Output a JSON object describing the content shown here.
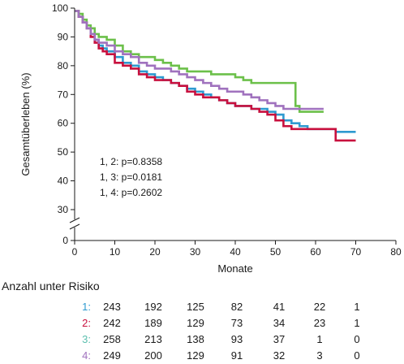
{
  "chart_data": {
    "type": "line",
    "step": true,
    "xlabel": "Monate",
    "ylabel": "Gesamtüberleben (%)",
    "xlim": [
      0,
      80
    ],
    "x_ticks": [
      0,
      10,
      20,
      30,
      40,
      50,
      60,
      70,
      80
    ],
    "ylim": [
      30,
      100
    ],
    "y_ticks": [
      100,
      90,
      80,
      70,
      60,
      50,
      40,
      30
    ],
    "y_axis_break": true,
    "y_break_bottom_tick": 0,
    "grid": false,
    "annotations": [
      "1, 2: p=0.8358",
      "1, 3: p=0.0181",
      "1, 4: p=0.2602"
    ],
    "series": [
      {
        "id": "1",
        "color": "#2e9ad0",
        "x": [
          0,
          1,
          2,
          3,
          4,
          5,
          6,
          7,
          8,
          10,
          12,
          14,
          16,
          18,
          20,
          22,
          24,
          26,
          28,
          30,
          32,
          34,
          36,
          38,
          40,
          42,
          44,
          46,
          48,
          50,
          52,
          54,
          56,
          58,
          60,
          62,
          65,
          68,
          70
        ],
        "y": [
          99,
          97,
          95,
          93,
          91,
          89,
          87,
          86,
          85,
          83,
          81,
          80,
          78,
          77,
          76,
          75,
          74,
          73,
          72,
          71,
          70,
          69,
          68,
          67,
          66,
          66,
          65,
          65,
          64,
          63,
          61,
          60,
          59,
          58,
          58,
          58,
          57,
          57,
          57
        ]
      },
      {
        "id": "2",
        "color": "#c8103e",
        "x": [
          0,
          1,
          2,
          3,
          4,
          5,
          6,
          7,
          8,
          10,
          12,
          14,
          16,
          18,
          20,
          22,
          24,
          26,
          28,
          30,
          32,
          34,
          36,
          38,
          40,
          42,
          44,
          46,
          48,
          50,
          52,
          54,
          56,
          58,
          60,
          62,
          64,
          65,
          66,
          68,
          70
        ],
        "y": [
          99,
          97,
          95,
          93,
          90,
          88,
          86,
          85,
          84,
          81,
          80,
          79,
          77,
          76,
          75,
          75,
          74,
          73,
          71,
          70,
          69,
          69,
          68,
          67,
          66,
          66,
          65,
          64,
          63,
          61,
          59,
          58,
          58,
          58,
          58,
          58,
          58,
          54,
          54,
          54,
          54
        ]
      },
      {
        "id": "3",
        "color": "#6cc04a",
        "x": [
          0,
          1,
          2,
          3,
          4,
          5,
          6,
          8,
          10,
          12,
          14,
          16,
          18,
          20,
          22,
          24,
          26,
          28,
          30,
          32,
          34,
          36,
          38,
          40,
          42,
          44,
          46,
          48,
          50,
          52,
          54,
          55,
          56,
          58,
          60,
          62
        ],
        "y": [
          99,
          98,
          96,
          94,
          93,
          91,
          90,
          89,
          87,
          85,
          84,
          83,
          83,
          82,
          81,
          80,
          79,
          78,
          78,
          78,
          77,
          77,
          77,
          76,
          75,
          74,
          74,
          74,
          74,
          74,
          74,
          66,
          64,
          64,
          64,
          64
        ]
      },
      {
        "id": "4",
        "color": "#a072be",
        "x": [
          0,
          1,
          2,
          3,
          4,
          5,
          6,
          8,
          10,
          12,
          14,
          16,
          18,
          20,
          22,
          24,
          26,
          28,
          30,
          32,
          34,
          36,
          38,
          40,
          42,
          44,
          46,
          48,
          50,
          52,
          54,
          56,
          58,
          60,
          62
        ],
        "y": [
          99,
          97,
          95,
          93,
          91,
          89,
          88,
          87,
          85,
          84,
          83,
          81,
          80,
          79,
          79,
          78,
          77,
          76,
          75,
          74,
          73,
          72,
          71,
          71,
          70,
          69,
          68,
          67,
          66,
          65,
          65,
          65,
          65,
          65,
          65
        ]
      }
    ]
  },
  "risk_table": {
    "title": "Anzahl unter Risiko",
    "rows": [
      {
        "label": "1:",
        "color": "#2e9ad0",
        "values": [
          "243",
          "192",
          "125",
          "82",
          "41",
          "22",
          "1"
        ]
      },
      {
        "label": "2:",
        "color": "#c8103e",
        "values": [
          "242",
          "189",
          "129",
          "73",
          "34",
          "23",
          "1"
        ]
      },
      {
        "label": "3:",
        "color": "#5bbfae",
        "values": [
          "258",
          "213",
          "138",
          "93",
          "37",
          "1",
          "0"
        ]
      },
      {
        "label": "4:",
        "color": "#a072be",
        "values": [
          "249",
          "200",
          "129",
          "91",
          "32",
          "3",
          "0"
        ]
      }
    ]
  }
}
